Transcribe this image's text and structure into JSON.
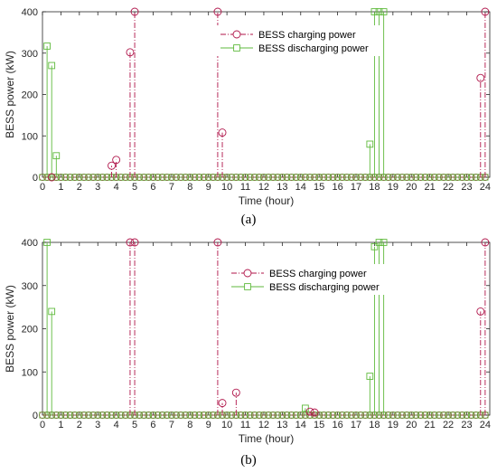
{
  "figure": {
    "caption_a": "(a)",
    "caption_b": "(b)"
  },
  "colors": {
    "charging": "#b0154a",
    "discharging": "#5fba3c",
    "axis": "#262626"
  },
  "chart_data": [
    {
      "type": "stem",
      "xlabel": "Time (hour)",
      "ylabel": "BESS power (kW)",
      "xlim": [
        0,
        24.25
      ],
      "ylim": [
        0,
        400
      ],
      "xticks": [
        0,
        1,
        2,
        3,
        4,
        5,
        6,
        7,
        8,
        9,
        10,
        11,
        12,
        13,
        14,
        15,
        16,
        17,
        18,
        19,
        20,
        21,
        22,
        23,
        24
      ],
      "yticks": [
        0,
        100,
        200,
        300,
        400
      ],
      "legend_position": "top-center",
      "grid": false,
      "series": [
        {
          "name": "BESS charging power",
          "marker": "circle",
          "line_style": "dash-dot",
          "points": [
            [
              0.5,
              0
            ],
            [
              3.75,
              28
            ],
            [
              4,
              42
            ],
            [
              4.75,
              302
            ],
            [
              5,
              400
            ],
            [
              9.5,
              400
            ],
            [
              9.75,
              108
            ],
            [
              23.75,
              240
            ],
            [
              24,
              400
            ]
          ]
        },
        {
          "name": "BESS discharging power",
          "marker": "square",
          "line_style": "solid",
          "points": [
            [
              0.25,
              317
            ],
            [
              0.5,
              270
            ],
            [
              0.75,
              52
            ],
            [
              17.75,
              80
            ],
            [
              18,
              400
            ],
            [
              18.25,
              400
            ],
            [
              18.5,
              400
            ]
          ]
        }
      ]
    },
    {
      "type": "stem",
      "xlabel": "Time (hour)",
      "ylabel": "BESS power (kW)",
      "xlim": [
        0,
        24.25
      ],
      "ylim": [
        0,
        400
      ],
      "xticks": [
        0,
        1,
        2,
        3,
        4,
        5,
        6,
        7,
        8,
        9,
        10,
        11,
        12,
        13,
        14,
        15,
        16,
        17,
        18,
        19,
        20,
        21,
        22,
        23,
        24
      ],
      "yticks": [
        0,
        100,
        200,
        300,
        400
      ],
      "legend_position": "top-center",
      "grid": false,
      "series": [
        {
          "name": "BESS charging power",
          "marker": "circle",
          "line_style": "dash-dot",
          "points": [
            [
              4.75,
              400
            ],
            [
              5,
              400
            ],
            [
              9.5,
              400
            ],
            [
              9.75,
              28
            ],
            [
              10.5,
              52
            ],
            [
              14.5,
              8
            ],
            [
              14.75,
              6
            ],
            [
              23.75,
              240
            ],
            [
              24,
              400
            ]
          ]
        },
        {
          "name": "BESS discharging power",
          "marker": "square",
          "line_style": "solid",
          "points": [
            [
              0.25,
              400
            ],
            [
              0.5,
              240
            ],
            [
              14.25,
              16
            ],
            [
              17.75,
              90
            ],
            [
              18,
              390
            ],
            [
              18.25,
              400
            ],
            [
              18.5,
              400
            ]
          ]
        }
      ]
    }
  ]
}
